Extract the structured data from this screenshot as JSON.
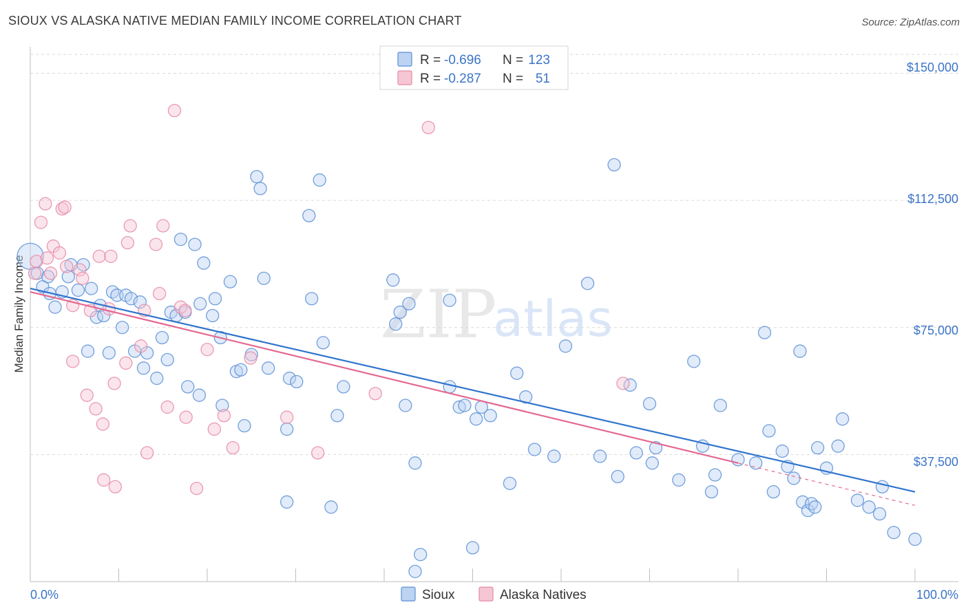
{
  "header": {
    "title": "SIOUX VS ALASKA NATIVE MEDIAN FAMILY INCOME CORRELATION CHART",
    "source": "Source: ZipAtlas.com"
  },
  "watermark": {
    "zip": "ZIP",
    "atlas": "atlas"
  },
  "colors": {
    "sioux": "#5b8fd6",
    "sioux_fill": "#bcd3f2",
    "sioux_line": "#2f74cc",
    "alaska": "#e58aa6",
    "alaska_fill": "#f6c6d4",
    "alaska_line": "#e46890",
    "axis_text": "#3b74c8",
    "grid": "#d9d9d9"
  },
  "legend": {
    "rows": [
      {
        "series": "sioux",
        "r_label": "R = ",
        "r_value": "-0.696",
        "n_label": "N = ",
        "n_value": "123"
      },
      {
        "series": "alaska",
        "r_label": "R = ",
        "r_value": "-0.287",
        "n_label": "N = ",
        "n_value": "51"
      }
    ]
  },
  "chart_data": {
    "type": "scatter",
    "title": "SIOUX VS ALASKA NATIVE MEDIAN FAMILY INCOME CORRELATION CHART",
    "xlabel": "",
    "ylabel": "Median Family Income",
    "xlim": [
      0,
      100
    ],
    "ylim": [
      0,
      157000
    ],
    "x_tick_labels": [
      {
        "value": 0,
        "label": "0.0%"
      },
      {
        "value": 100,
        "label": "100.0%"
      }
    ],
    "y_ticks": [
      {
        "value": 150000,
        "label": "$150,000"
      },
      {
        "value": 112500,
        "label": "$112,500"
      },
      {
        "value": 75000,
        "label": "$75,000"
      },
      {
        "value": 37500,
        "label": "$37,500"
      }
    ],
    "grid": "horizontal dashed",
    "legend_position": "bottom",
    "series": [
      {
        "name": "Sioux",
        "key": "sioux",
        "trend": {
          "x": [
            0,
            100
          ],
          "y": [
            86500,
            26500
          ]
        },
        "points": [
          {
            "x": 0,
            "y": 96000,
            "big": true
          },
          {
            "x": 0.8,
            "y": 91000
          },
          {
            "x": 1.4,
            "y": 87000
          },
          {
            "x": 2,
            "y": 90000
          },
          {
            "x": 2.2,
            "y": 85000
          },
          {
            "x": 2.8,
            "y": 81000
          },
          {
            "x": 3.6,
            "y": 85500
          },
          {
            "x": 4.3,
            "y": 90000
          },
          {
            "x": 4.6,
            "y": 93500
          },
          {
            "x": 5.4,
            "y": 86000
          },
          {
            "x": 6.0,
            "y": 93500
          },
          {
            "x": 6.5,
            "y": 68000
          },
          {
            "x": 6.9,
            "y": 86500
          },
          {
            "x": 7.5,
            "y": 78000
          },
          {
            "x": 7.9,
            "y": 81500
          },
          {
            "x": 8.3,
            "y": 78500
          },
          {
            "x": 8.9,
            "y": 67500
          },
          {
            "x": 9.3,
            "y": 85500
          },
          {
            "x": 9.8,
            "y": 84500
          },
          {
            "x": 10.4,
            "y": 75000
          },
          {
            "x": 10.8,
            "y": 84500
          },
          {
            "x": 11.4,
            "y": 83500
          },
          {
            "x": 11.8,
            "y": 68000
          },
          {
            "x": 12.4,
            "y": 82500
          },
          {
            "x": 12.8,
            "y": 63000
          },
          {
            "x": 13.2,
            "y": 67500
          },
          {
            "x": 14.3,
            "y": 60000
          },
          {
            "x": 14.9,
            "y": 72000
          },
          {
            "x": 15.5,
            "y": 65500
          },
          {
            "x": 15.9,
            "y": 79500
          },
          {
            "x": 16.5,
            "y": 78500
          },
          {
            "x": 17.0,
            "y": 101000
          },
          {
            "x": 17.5,
            "y": 79500
          },
          {
            "x": 17.8,
            "y": 57500
          },
          {
            "x": 18.6,
            "y": 99500
          },
          {
            "x": 19.1,
            "y": 55000
          },
          {
            "x": 19.2,
            "y": 82000
          },
          {
            "x": 19.6,
            "y": 94000
          },
          {
            "x": 20.6,
            "y": 78500
          },
          {
            "x": 20.9,
            "y": 83500
          },
          {
            "x": 21.5,
            "y": 72000
          },
          {
            "x": 21.7,
            "y": 52000
          },
          {
            "x": 22.6,
            "y": 88500
          },
          {
            "x": 23.3,
            "y": 62000
          },
          {
            "x": 23.8,
            "y": 62500
          },
          {
            "x": 24.2,
            "y": 46000
          },
          {
            "x": 25.0,
            "y": 67000
          },
          {
            "x": 25.6,
            "y": 119500
          },
          {
            "x": 26.0,
            "y": 116000
          },
          {
            "x": 26.4,
            "y": 89500
          },
          {
            "x": 26.9,
            "y": 63000
          },
          {
            "x": 29.0,
            "y": 45000
          },
          {
            "x": 29.3,
            "y": 60000
          },
          {
            "x": 30.1,
            "y": 59000
          },
          {
            "x": 29.0,
            "y": 23500
          },
          {
            "x": 31.5,
            "y": 108000
          },
          {
            "x": 31.8,
            "y": 83500
          },
          {
            "x": 32.7,
            "y": 118500
          },
          {
            "x": 33.1,
            "y": 70500
          },
          {
            "x": 34.0,
            "y": 22000
          },
          {
            "x": 34.7,
            "y": 49000
          },
          {
            "x": 35.4,
            "y": 57500
          },
          {
            "x": 41.0,
            "y": 89000
          },
          {
            "x": 41.3,
            "y": 76000
          },
          {
            "x": 41.8,
            "y": 79500
          },
          {
            "x": 42.8,
            "y": 82000
          },
          {
            "x": 42.4,
            "y": 52000
          },
          {
            "x": 43.5,
            "y": 35000
          },
          {
            "x": 43.5,
            "y": 3000
          },
          {
            "x": 44.1,
            "y": 8000
          },
          {
            "x": 47.4,
            "y": 83000
          },
          {
            "x": 47.4,
            "y": 57500
          },
          {
            "x": 48.5,
            "y": 51500
          },
          {
            "x": 49.1,
            "y": 52000
          },
          {
            "x": 50.0,
            "y": 10000
          },
          {
            "x": 50.4,
            "y": 48000
          },
          {
            "x": 51.0,
            "y": 51500
          },
          {
            "x": 52.0,
            "y": 49000
          },
          {
            "x": 54.2,
            "y": 29000
          },
          {
            "x": 55.0,
            "y": 61500
          },
          {
            "x": 56.0,
            "y": 54500
          },
          {
            "x": 57.0,
            "y": 39000
          },
          {
            "x": 59.2,
            "y": 37000
          },
          {
            "x": 60.5,
            "y": 69500
          },
          {
            "x": 63.0,
            "y": 88000
          },
          {
            "x": 64.4,
            "y": 37000
          },
          {
            "x": 66.0,
            "y": 123000
          },
          {
            "x": 66.4,
            "y": 31000
          },
          {
            "x": 67.8,
            "y": 58000
          },
          {
            "x": 68.5,
            "y": 38000
          },
          {
            "x": 70.0,
            "y": 52500
          },
          {
            "x": 70.3,
            "y": 35000
          },
          {
            "x": 70.7,
            "y": 39500
          },
          {
            "x": 73.3,
            "y": 30000
          },
          {
            "x": 75.0,
            "y": 65000
          },
          {
            "x": 76.0,
            "y": 40000
          },
          {
            "x": 77.0,
            "y": 26500
          },
          {
            "x": 77.4,
            "y": 31500
          },
          {
            "x": 78.0,
            "y": 52000
          },
          {
            "x": 80.0,
            "y": 36000
          },
          {
            "x": 82.0,
            "y": 35000
          },
          {
            "x": 83.0,
            "y": 73500
          },
          {
            "x": 83.5,
            "y": 44500
          },
          {
            "x": 84.0,
            "y": 26500
          },
          {
            "x": 85.0,
            "y": 38500
          },
          {
            "x": 85.6,
            "y": 34000
          },
          {
            "x": 86.3,
            "y": 30500
          },
          {
            "x": 87.0,
            "y": 68000
          },
          {
            "x": 87.3,
            "y": 23500
          },
          {
            "x": 87.9,
            "y": 21000
          },
          {
            "x": 88.3,
            "y": 23000
          },
          {
            "x": 88.7,
            "y": 22000
          },
          {
            "x": 89.0,
            "y": 39500
          },
          {
            "x": 90.0,
            "y": 33500
          },
          {
            "x": 91.3,
            "y": 40000
          },
          {
            "x": 91.8,
            "y": 48000
          },
          {
            "x": 93.5,
            "y": 24000
          },
          {
            "x": 94.8,
            "y": 22000
          },
          {
            "x": 96.3,
            "y": 28000
          },
          {
            "x": 96.0,
            "y": 20000
          },
          {
            "x": 97.6,
            "y": 14500
          },
          {
            "x": 100.0,
            "y": 12500
          }
        ]
      },
      {
        "name": "Alaska Natives",
        "key": "alaska",
        "trend": {
          "x": [
            0,
            80
          ],
          "y": [
            85500,
            35000
          ]
        },
        "trend_dashed": {
          "x": [
            80,
            100
          ],
          "y": [
            35000,
            22500
          ]
        },
        "points": [
          {
            "x": 0.5,
            "y": 91000
          },
          {
            "x": 0.7,
            "y": 94500
          },
          {
            "x": 1.2,
            "y": 106000
          },
          {
            "x": 1.7,
            "y": 111500
          },
          {
            "x": 1.9,
            "y": 95500
          },
          {
            "x": 2.3,
            "y": 91000
          },
          {
            "x": 2.6,
            "y": 99000
          },
          {
            "x": 3.3,
            "y": 97000
          },
          {
            "x": 3.6,
            "y": 110000
          },
          {
            "x": 3.9,
            "y": 110500
          },
          {
            "x": 4.1,
            "y": 93000
          },
          {
            "x": 4.8,
            "y": 81500
          },
          {
            "x": 4.8,
            "y": 65000
          },
          {
            "x": 5.6,
            "y": 92000
          },
          {
            "x": 5.9,
            "y": 89500
          },
          {
            "x": 6.4,
            "y": 55000
          },
          {
            "x": 6.8,
            "y": 80000
          },
          {
            "x": 7.4,
            "y": 51000
          },
          {
            "x": 7.8,
            "y": 96000
          },
          {
            "x": 8.2,
            "y": 46500
          },
          {
            "x": 8.3,
            "y": 30000
          },
          {
            "x": 8.9,
            "y": 80500
          },
          {
            "x": 9.1,
            "y": 96000
          },
          {
            "x": 9.5,
            "y": 58500
          },
          {
            "x": 9.6,
            "y": 28000
          },
          {
            "x": 10.8,
            "y": 64500
          },
          {
            "x": 11.0,
            "y": 100000
          },
          {
            "x": 11.3,
            "y": 105000
          },
          {
            "x": 12.5,
            "y": 69500
          },
          {
            "x": 12.9,
            "y": 80000
          },
          {
            "x": 13.2,
            "y": 38000
          },
          {
            "x": 14.2,
            "y": 99500
          },
          {
            "x": 14.6,
            "y": 85000
          },
          {
            "x": 15.0,
            "y": 105000
          },
          {
            "x": 15.5,
            "y": 51500
          },
          {
            "x": 16.3,
            "y": 139000
          },
          {
            "x": 17.0,
            "y": 81000
          },
          {
            "x": 17.5,
            "y": 80000
          },
          {
            "x": 17.6,
            "y": 48500
          },
          {
            "x": 18.8,
            "y": 27500
          },
          {
            "x": 20.0,
            "y": 68500
          },
          {
            "x": 20.8,
            "y": 45000
          },
          {
            "x": 21.9,
            "y": 49000
          },
          {
            "x": 22.9,
            "y": 39500
          },
          {
            "x": 24.9,
            "y": 66000
          },
          {
            "x": 29.0,
            "y": 48500
          },
          {
            "x": 32.5,
            "y": 38000
          },
          {
            "x": 39.0,
            "y": 55500
          },
          {
            "x": 45.0,
            "y": 134000
          },
          {
            "x": 67.0,
            "y": 58500
          }
        ]
      }
    ]
  },
  "bottom_legend": [
    {
      "series": "sioux",
      "label": "Sioux"
    },
    {
      "series": "alaska",
      "label": "Alaska Natives"
    }
  ]
}
